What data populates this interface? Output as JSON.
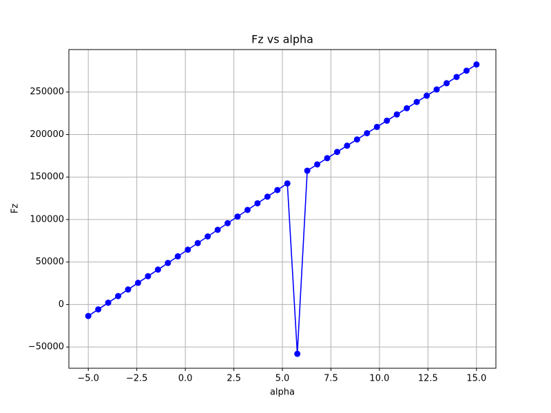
{
  "chart_data": {
    "type": "line",
    "title": "Fz vs alpha",
    "x_label": "alpha",
    "y_label": "Fz",
    "x": [
      -5,
      -4.487,
      -3.974,
      -3.462,
      -2.949,
      -2.436,
      -1.923,
      -1.41,
      -0.897,
      -0.385,
      0.128,
      0.641,
      1.154,
      1.667,
      2.179,
      2.692,
      3.205,
      3.718,
      4.231,
      4.744,
      5.256,
      5.769,
      6.282,
      6.795,
      7.308,
      7.821,
      8.333,
      8.846,
      9.359,
      9.872,
      10.385,
      10.897,
      11.41,
      11.923,
      12.436,
      12.949,
      13.462,
      13.974,
      14.487,
      15
    ],
    "series": [
      {
        "name": "Fz",
        "color": "#0000ff",
        "marker": "circle",
        "values": [
          -13500,
          -5700,
          2100,
          9900,
          17700,
          25500,
          33300,
          41100,
          48900,
          56700,
          64500,
          72300,
          80100,
          87900,
          95700,
          103500,
          111300,
          119100,
          126900,
          134700,
          142500,
          -58000,
          157500,
          164850,
          172200,
          179550,
          186900,
          194250,
          201600,
          208950,
          216300,
          223650,
          231000,
          238350,
          245700,
          253050,
          260400,
          267750,
          275100,
          282450
        ]
      }
    ],
    "xlim": [
      -6,
      16
    ],
    "ylim": [
      -75000,
      300000
    ],
    "xticks": [
      {
        "value": -5,
        "label": "−5.0"
      },
      {
        "value": -2.5,
        "label": "−2.5"
      },
      {
        "value": 0,
        "label": "0.0"
      },
      {
        "value": 2.5,
        "label": "2.5"
      },
      {
        "value": 5,
        "label": "5.0"
      },
      {
        "value": 7.5,
        "label": "7.5"
      },
      {
        "value": 10,
        "label": "10.0"
      },
      {
        "value": 12.5,
        "label": "12.5"
      },
      {
        "value": 15,
        "label": "15.0"
      }
    ],
    "yticks": [
      {
        "value": -50000,
        "label": "−50000"
      },
      0,
      50000,
      100000,
      150000,
      200000,
      250000
    ],
    "grid": true
  }
}
